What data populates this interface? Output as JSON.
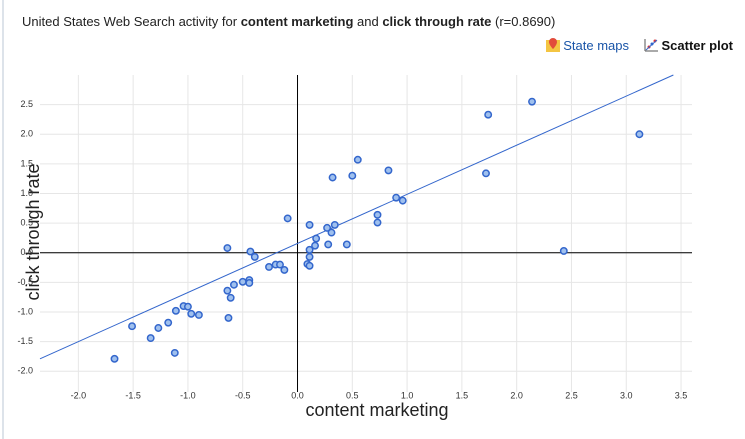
{
  "header": {
    "title": {
      "prefix": "United States Web Search activity for ",
      "term1": "content marketing",
      "mid": " and ",
      "term2": "click through rate",
      "suffix": " (r=0.8690)"
    },
    "links": [
      "State maps",
      "Scatter plot"
    ]
  },
  "chart_data": {
    "type": "scatter",
    "x_label": "content marketing",
    "y_label": "click through rate",
    "color": "#3366cc",
    "fill": "#9fc0ee",
    "grid": true,
    "xlim": [
      -2.35,
      3.6
    ],
    "ylim": [
      -2.35,
      3.0
    ],
    "xticks": [
      {
        "value": -2,
        "label": "-2.0"
      },
      -1.5,
      {
        "value": -1,
        "label": "-1.0"
      },
      -0.5,
      {
        "value": 0,
        "label": "0.0"
      },
      0.5,
      {
        "value": 1,
        "label": "1.0"
      },
      1.5,
      {
        "value": 2,
        "label": "2.0"
      },
      2.5,
      {
        "value": 3,
        "label": "3.0"
      },
      3.5
    ],
    "yticks": [
      {
        "value": -2,
        "label": "-2.0"
      },
      -1.5,
      {
        "value": -1,
        "label": "-1.0"
      },
      -0.5,
      {
        "value": 0,
        "label": "0.0"
      },
      0.5,
      {
        "value": 1,
        "label": "1.0"
      },
      1.5,
      {
        "value": 2,
        "label": "2.0"
      },
      2.5
    ],
    "x": [
      -1.67,
      -1.51,
      -1.34,
      -1.27,
      -1.18,
      -1.12,
      -1.11,
      -1.04,
      -1.0,
      -0.97,
      -0.9,
      -0.64,
      -0.64,
      -0.61,
      -0.63,
      -0.58,
      -0.5,
      -0.44,
      -0.44,
      -0.43,
      -0.39,
      -0.26,
      -0.2,
      -0.16,
      -0.12,
      -0.09,
      0.09,
      0.11,
      0.11,
      0.11,
      0.11,
      0.16,
      0.17,
      0.27,
      0.31,
      0.28,
      0.34,
      0.32,
      0.45,
      0.5,
      0.55,
      0.73,
      0.73,
      0.83,
      0.9,
      0.96,
      1.74,
      1.72,
      2.14,
      2.43,
      3.12
    ],
    "y": [
      -1.79,
      -1.24,
      -1.44,
      -1.27,
      -1.18,
      -1.69,
      -0.98,
      -0.9,
      -0.91,
      -1.03,
      -1.05,
      0.08,
      -0.64,
      -0.76,
      -1.1,
      -0.54,
      -0.49,
      -0.46,
      -0.51,
      0.02,
      -0.07,
      -0.24,
      -0.2,
      -0.2,
      -0.29,
      0.58,
      -0.19,
      -0.22,
      0.05,
      -0.07,
      0.47,
      0.12,
      0.24,
      0.42,
      0.34,
      0.14,
      0.47,
      1.27,
      0.14,
      1.3,
      1.57,
      0.64,
      0.51,
      1.39,
      0.93,
      0.88,
      2.33,
      1.34,
      2.55,
      0.03,
      2.0
    ],
    "trendline": {
      "x": [
        -2.35,
        3.43
      ],
      "y": [
        -1.79,
        3.0
      ]
    }
  }
}
